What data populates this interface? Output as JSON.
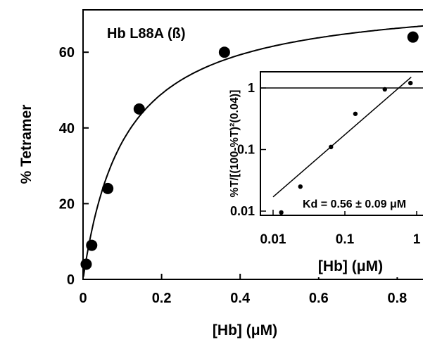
{
  "chart_data": [
    {
      "type": "scatter",
      "title": "Hb L88A (ß)",
      "xlabel": "[Hb] (μM)",
      "ylabel": "% Tetramer",
      "xlim": [
        0,
        0.88
      ],
      "ylim": [
        0,
        70
      ],
      "x_ticks": [
        0,
        0.2,
        0.4,
        0.6,
        0.8
      ],
      "x_tick_labels": [
        "0",
        "0.2",
        "0.4",
        "0.6",
        "0.8"
      ],
      "y_ticks": [
        0,
        20,
        40,
        60
      ],
      "y_tick_labels": [
        "0",
        "20",
        "40",
        "60"
      ],
      "grid": false,
      "series": [
        {
          "points": [
            {
              "x": 0.008,
              "y": 4
            },
            {
              "x": 0.022,
              "y": 9
            },
            {
              "x": 0.063,
              "y": 24
            },
            {
              "x": 0.143,
              "y": 45
            },
            {
              "x": 0.36,
              "y": 60
            },
            {
              "x": 0.84,
              "y": 64
            }
          ],
          "fit_curve": {
            "model": "hyperbolic",
            "ymax": 75.2,
            "k50": 0.107
          }
        }
      ]
    },
    {
      "type": "scatter",
      "xlabel": "[Hb] (μM)",
      "ylabel": "%T/[(100-%T)²(0.04)]",
      "xscale": "log",
      "yscale": "log",
      "xlim": [
        0.01,
        1
      ],
      "ylim": [
        0.007,
        1.6
      ],
      "x_ticks": [
        0.01,
        0.1,
        1
      ],
      "x_tick_labels": [
        "0.01",
        "0.1",
        "1"
      ],
      "y_ticks": [
        0.01,
        0.1,
        1
      ],
      "y_tick_labels": [
        "0.01",
        "0.1",
        "1"
      ],
      "reference_line_y": 1,
      "annotation": "Kd = 0.56 ± 0.09 μM",
      "series": [
        {
          "points": [
            {
              "x": 0.013,
              "y": 0.0095
            },
            {
              "x": 0.024,
              "y": 0.025
            },
            {
              "x": 0.064,
              "y": 0.11
            },
            {
              "x": 0.14,
              "y": 0.38
            },
            {
              "x": 0.36,
              "y": 0.95
            },
            {
              "x": 0.82,
              "y": 1.2
            }
          ],
          "fit_line": {
            "x": [
              0.01,
              0.84
            ],
            "y": [
              0.017,
              1.5
            ]
          }
        }
      ]
    }
  ]
}
